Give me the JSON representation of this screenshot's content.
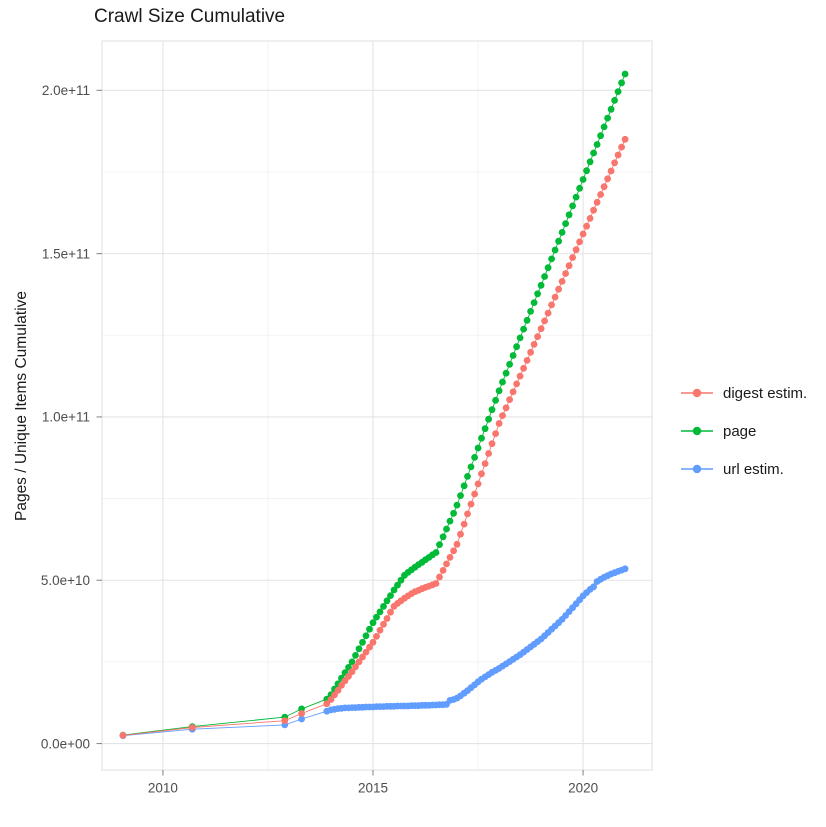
{
  "title": "Crawl Size Cumulative",
  "axes": {
    "y_title": "Pages / Unique Items Cumulative",
    "x_ticks": [
      {
        "label": "2010",
        "year": 2010
      },
      {
        "label": "2015",
        "year": 2015
      },
      {
        "label": "2020",
        "year": 2020
      }
    ],
    "x_minor_years": [
      2012.5,
      2017.5
    ],
    "y_ticks": [
      {
        "label": "0.0e+00",
        "value_billions": 0
      },
      {
        "label": "5.0e+10",
        "value_billions": 50
      },
      {
        "label": "1.0e+11",
        "value_billions": 100
      },
      {
        "label": "1.5e+11",
        "value_billions": 150
      },
      {
        "label": "2.0e+11",
        "value_billions": 200
      }
    ],
    "y_minor_billions": [
      25,
      75,
      125,
      175
    ]
  },
  "colors": {
    "digest": "#F8766D",
    "page": "#00BA38",
    "url": "#619CFF",
    "grid_major": "#E4E4E4",
    "grid_minor": "#F0F0F0",
    "panel_border": "#DFDFDF",
    "tick": "#8C8C8C",
    "tick_label": "#4D4D4D"
  },
  "chart_data": {
    "type": "scatter",
    "note": "points are [decimal_year, cumulative_count_in_billions]; values shown on y axis as count = billions * 1e9",
    "legend_position": "right",
    "grid": true,
    "x_range_years": [
      2008.55,
      2021.64
    ],
    "y_range_billions": [
      -8.1,
      215.1
    ],
    "series": [
      {
        "name": "digest estim.",
        "color": "#F8766D",
        "points": [
          [
            2009.05,
            2.5
          ],
          [
            2010.7,
            4.9
          ],
          [
            2012.9,
            7.0
          ],
          [
            2013.3,
            9.2
          ],
          [
            2013.9,
            12.2
          ],
          [
            2014.0,
            13.5
          ],
          [
            2014.083,
            14.9
          ],
          [
            2014.167,
            16.3
          ],
          [
            2014.25,
            17.8
          ],
          [
            2014.333,
            19.2
          ],
          [
            2014.417,
            20.6
          ],
          [
            2014.5,
            22.0
          ],
          [
            2014.583,
            23.5
          ],
          [
            2014.667,
            25.0
          ],
          [
            2014.75,
            26.5
          ],
          [
            2014.833,
            28.0
          ],
          [
            2014.917,
            29.5
          ],
          [
            2015.0,
            31.0
          ],
          [
            2015.083,
            32.8
          ],
          [
            2015.167,
            34.7
          ],
          [
            2015.25,
            36.5
          ],
          [
            2015.333,
            38.3
          ],
          [
            2015.417,
            40.2
          ],
          [
            2015.5,
            42.0
          ],
          [
            2015.583,
            42.9
          ],
          [
            2015.667,
            43.7
          ],
          [
            2015.75,
            44.5
          ],
          [
            2015.833,
            45.2
          ],
          [
            2015.917,
            45.9
          ],
          [
            2016.0,
            46.5
          ],
          [
            2016.083,
            46.9
          ],
          [
            2016.167,
            47.4
          ],
          [
            2016.25,
            47.8
          ],
          [
            2016.333,
            48.2
          ],
          [
            2016.417,
            48.6
          ],
          [
            2016.5,
            49.0
          ],
          [
            2016.583,
            51.0
          ],
          [
            2016.667,
            53.0
          ],
          [
            2016.75,
            55.0
          ],
          [
            2016.833,
            57.0
          ],
          [
            2016.917,
            59.0
          ],
          [
            2017.0,
            61.0
          ],
          [
            2017.083,
            64.1
          ],
          [
            2017.167,
            67.2
          ],
          [
            2017.25,
            70.3
          ],
          [
            2017.333,
            73.3
          ],
          [
            2017.417,
            76.4
          ],
          [
            2017.5,
            79.5
          ],
          [
            2017.583,
            82.6
          ],
          [
            2017.667,
            85.7
          ],
          [
            2017.75,
            88.8
          ],
          [
            2017.833,
            91.8
          ],
          [
            2017.917,
            94.9
          ],
          [
            2018.0,
            98.0
          ],
          [
            2018.083,
            100.4
          ],
          [
            2018.167,
            102.8
          ],
          [
            2018.25,
            105.3
          ],
          [
            2018.333,
            107.7
          ],
          [
            2018.417,
            110.1
          ],
          [
            2018.5,
            112.5
          ],
          [
            2018.583,
            114.9
          ],
          [
            2018.667,
            117.3
          ],
          [
            2018.75,
            119.8
          ],
          [
            2018.833,
            122.2
          ],
          [
            2018.917,
            124.6
          ],
          [
            2019.0,
            127.0
          ],
          [
            2019.083,
            129.4
          ],
          [
            2019.167,
            131.8
          ],
          [
            2019.25,
            134.3
          ],
          [
            2019.333,
            136.7
          ],
          [
            2019.417,
            139.1
          ],
          [
            2019.5,
            141.5
          ],
          [
            2019.583,
            143.9
          ],
          [
            2019.667,
            146.3
          ],
          [
            2019.75,
            148.8
          ],
          [
            2019.833,
            151.2
          ],
          [
            2019.917,
            153.6
          ],
          [
            2020.0,
            156.0
          ],
          [
            2020.083,
            158.4
          ],
          [
            2020.167,
            160.8
          ],
          [
            2020.25,
            163.3
          ],
          [
            2020.333,
            165.7
          ],
          [
            2020.417,
            168.1
          ],
          [
            2020.5,
            170.5
          ],
          [
            2020.583,
            172.9
          ],
          [
            2020.667,
            175.3
          ],
          [
            2020.75,
            177.8
          ],
          [
            2020.833,
            180.2
          ],
          [
            2020.917,
            182.6
          ],
          [
            2021.0,
            185.0
          ]
        ]
      },
      {
        "name": "page",
        "color": "#00BA38",
        "points": [
          [
            2009.05,
            2.6
          ],
          [
            2010.7,
            5.2
          ],
          [
            2012.9,
            8.1
          ],
          [
            2013.3,
            10.6
          ],
          [
            2013.9,
            13.6
          ],
          [
            2014.0,
            15.0
          ],
          [
            2014.083,
            16.7
          ],
          [
            2014.167,
            18.3
          ],
          [
            2014.25,
            20.0
          ],
          [
            2014.333,
            21.7
          ],
          [
            2014.417,
            23.3
          ],
          [
            2014.5,
            25.0
          ],
          [
            2014.583,
            27.0
          ],
          [
            2014.667,
            29.0
          ],
          [
            2014.75,
            31.0
          ],
          [
            2014.833,
            33.0
          ],
          [
            2014.917,
            35.0
          ],
          [
            2015.0,
            37.0
          ],
          [
            2015.083,
            38.7
          ],
          [
            2015.167,
            40.3
          ],
          [
            2015.25,
            42.0
          ],
          [
            2015.333,
            43.7
          ],
          [
            2015.417,
            45.3
          ],
          [
            2015.5,
            47.0
          ],
          [
            2015.583,
            48.5
          ],
          [
            2015.667,
            50.0
          ],
          [
            2015.75,
            51.5
          ],
          [
            2015.833,
            52.4
          ],
          [
            2015.917,
            53.2
          ],
          [
            2016.0,
            54.0
          ],
          [
            2016.083,
            54.8
          ],
          [
            2016.167,
            55.5
          ],
          [
            2016.25,
            56.3
          ],
          [
            2016.333,
            57.0
          ],
          [
            2016.417,
            57.8
          ],
          [
            2016.5,
            58.5
          ],
          [
            2016.583,
            60.9
          ],
          [
            2016.667,
            63.3
          ],
          [
            2016.75,
            65.7
          ],
          [
            2016.833,
            68.1
          ],
          [
            2016.917,
            70.5
          ],
          [
            2017.0,
            73.0
          ],
          [
            2017.083,
            75.9
          ],
          [
            2017.167,
            78.9
          ],
          [
            2017.25,
            81.8
          ],
          [
            2017.333,
            84.7
          ],
          [
            2017.417,
            87.6
          ],
          [
            2017.5,
            90.5
          ],
          [
            2017.583,
            93.5
          ],
          [
            2017.667,
            96.4
          ],
          [
            2017.75,
            99.3
          ],
          [
            2017.833,
            102.2
          ],
          [
            2017.917,
            105.1
          ],
          [
            2018.0,
            108.0
          ],
          [
            2018.083,
            110.7
          ],
          [
            2018.167,
            113.4
          ],
          [
            2018.25,
            116.1
          ],
          [
            2018.333,
            118.8
          ],
          [
            2018.417,
            121.5
          ],
          [
            2018.5,
            124.2
          ],
          [
            2018.583,
            126.9
          ],
          [
            2018.667,
            129.6
          ],
          [
            2018.75,
            132.3
          ],
          [
            2018.833,
            135.0
          ],
          [
            2018.917,
            137.7
          ],
          [
            2019.0,
            140.3
          ],
          [
            2019.083,
            143.0
          ],
          [
            2019.167,
            145.7
          ],
          [
            2019.25,
            148.4
          ],
          [
            2019.333,
            151.1
          ],
          [
            2019.417,
            153.8
          ],
          [
            2019.5,
            156.5
          ],
          [
            2019.583,
            159.2
          ],
          [
            2019.667,
            161.9
          ],
          [
            2019.75,
            164.6
          ],
          [
            2019.833,
            167.3
          ],
          [
            2019.917,
            170.0
          ],
          [
            2020.0,
            172.7
          ],
          [
            2020.083,
            175.4
          ],
          [
            2020.167,
            178.1
          ],
          [
            2020.25,
            180.8
          ],
          [
            2020.333,
            183.4
          ],
          [
            2020.417,
            186.1
          ],
          [
            2020.5,
            188.8
          ],
          [
            2020.583,
            191.5
          ],
          [
            2020.667,
            194.2
          ],
          [
            2020.75,
            196.9
          ],
          [
            2020.833,
            199.6
          ],
          [
            2020.917,
            202.3
          ],
          [
            2021.0,
            205.0
          ]
        ]
      },
      {
        "name": "url estim.",
        "color": "#619CFF",
        "points": [
          [
            2009.05,
            2.4
          ],
          [
            2010.7,
            4.4
          ],
          [
            2012.9,
            5.7
          ],
          [
            2013.3,
            7.5
          ],
          [
            2013.9,
            9.9
          ],
          [
            2014.0,
            10.3
          ],
          [
            2014.083,
            10.5
          ],
          [
            2014.167,
            10.7
          ],
          [
            2014.25,
            10.8
          ],
          [
            2014.333,
            10.9
          ],
          [
            2014.417,
            10.9
          ],
          [
            2014.5,
            11.0
          ],
          [
            2014.583,
            11.0
          ],
          [
            2014.667,
            11.1
          ],
          [
            2014.75,
            11.1
          ],
          [
            2014.833,
            11.2
          ],
          [
            2014.917,
            11.2
          ],
          [
            2015.0,
            11.2
          ],
          [
            2015.083,
            11.3
          ],
          [
            2015.167,
            11.3
          ],
          [
            2015.25,
            11.3
          ],
          [
            2015.333,
            11.4
          ],
          [
            2015.417,
            11.4
          ],
          [
            2015.5,
            11.4
          ],
          [
            2015.583,
            11.5
          ],
          [
            2015.667,
            11.5
          ],
          [
            2015.75,
            11.5
          ],
          [
            2015.833,
            11.5
          ],
          [
            2015.917,
            11.6
          ],
          [
            2016.0,
            11.6
          ],
          [
            2016.083,
            11.6
          ],
          [
            2016.167,
            11.7
          ],
          [
            2016.25,
            11.7
          ],
          [
            2016.333,
            11.7
          ],
          [
            2016.417,
            11.8
          ],
          [
            2016.5,
            11.8
          ],
          [
            2016.583,
            11.9
          ],
          [
            2016.667,
            11.9
          ],
          [
            2016.75,
            12.0
          ],
          [
            2016.833,
            13.2
          ],
          [
            2016.917,
            13.5
          ],
          [
            2017.0,
            13.9
          ],
          [
            2017.083,
            14.6
          ],
          [
            2017.167,
            15.4
          ],
          [
            2017.25,
            16.2
          ],
          [
            2017.333,
            17.1
          ],
          [
            2017.417,
            18.0
          ],
          [
            2017.5,
            18.9
          ],
          [
            2017.583,
            19.7
          ],
          [
            2017.667,
            20.4
          ],
          [
            2017.75,
            21.1
          ],
          [
            2017.833,
            21.8
          ],
          [
            2017.917,
            22.4
          ],
          [
            2018.0,
            23.0
          ],
          [
            2018.083,
            23.7
          ],
          [
            2018.167,
            24.4
          ],
          [
            2018.25,
            25.1
          ],
          [
            2018.333,
            25.8
          ],
          [
            2018.417,
            26.5
          ],
          [
            2018.5,
            27.2
          ],
          [
            2018.583,
            28.0
          ],
          [
            2018.667,
            28.8
          ],
          [
            2018.75,
            29.6
          ],
          [
            2018.833,
            30.4
          ],
          [
            2018.917,
            31.2
          ],
          [
            2019.0,
            32.0
          ],
          [
            2019.083,
            33.0
          ],
          [
            2019.167,
            34.0
          ],
          [
            2019.25,
            35.0
          ],
          [
            2019.333,
            36.0
          ],
          [
            2019.417,
            37.0
          ],
          [
            2019.5,
            38.0
          ],
          [
            2019.583,
            39.2
          ],
          [
            2019.667,
            40.4
          ],
          [
            2019.75,
            41.6
          ],
          [
            2019.833,
            42.8
          ],
          [
            2019.917,
            44.0
          ],
          [
            2020.0,
            45.2
          ],
          [
            2020.083,
            46.2
          ],
          [
            2020.167,
            47.2
          ],
          [
            2020.25,
            48.0
          ],
          [
            2020.333,
            49.6
          ],
          [
            2020.417,
            50.3
          ],
          [
            2020.5,
            50.9
          ],
          [
            2020.583,
            51.4
          ],
          [
            2020.667,
            51.9
          ],
          [
            2020.75,
            52.3
          ],
          [
            2020.833,
            52.7
          ],
          [
            2020.917,
            53.1
          ],
          [
            2021.0,
            53.5
          ]
        ]
      }
    ]
  }
}
